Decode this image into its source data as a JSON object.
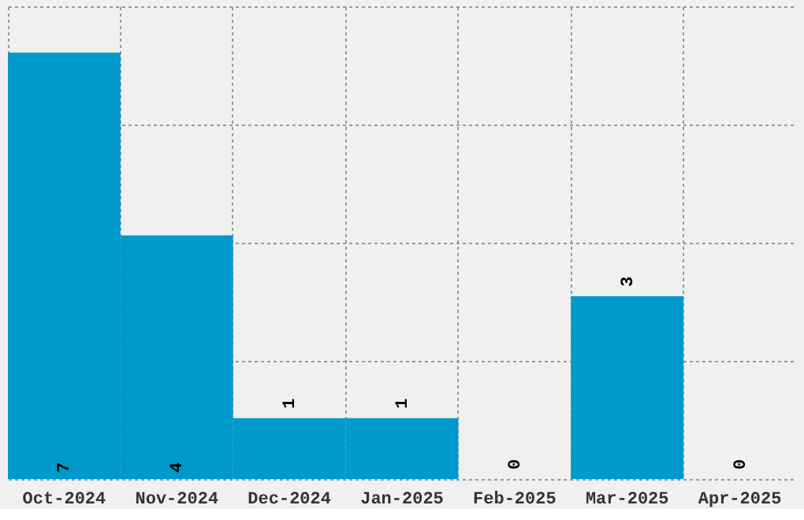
{
  "chart_data": {
    "type": "bar",
    "categories": [
      "Oct-2024",
      "Nov-2024",
      "Dec-2024",
      "Jan-2025",
      "Feb-2025",
      "Mar-2025",
      "Apr-2025"
    ],
    "values": [
      7,
      4,
      1,
      1,
      0,
      3,
      0
    ],
    "color": "#0099cc",
    "ylim": [
      0,
      7.76
    ],
    "yticks": [
      {
        "value": 0,
        "label": null
      },
      {
        "value": 1.94,
        "label": null
      },
      {
        "value": 3.88,
        "label": null
      },
      {
        "value": 5.82,
        "label": null
      },
      {
        "value": 7.76,
        "label": null
      }
    ],
    "grid": true,
    "data_labels": true,
    "tick_labels": "x"
  }
}
